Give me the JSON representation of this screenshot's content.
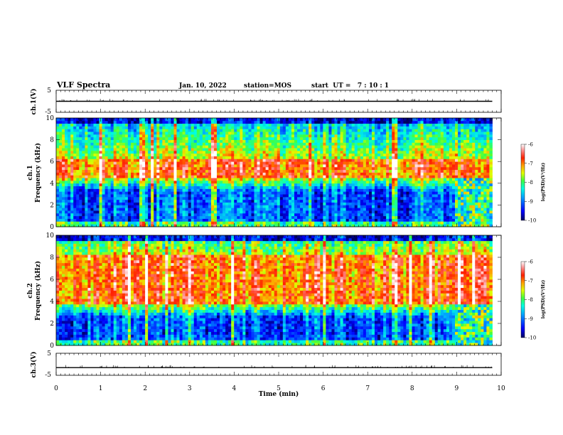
{
  "header": {
    "title": "VLF Spectra",
    "date": "Jan. 10, 2022",
    "station": "station=MOS",
    "start_time": "start  UT =   7 : 10 : 1"
  },
  "chart_data": [
    {
      "type": "line",
      "name": "waveform-ch1",
      "ylabel": "ch.1(V)",
      "ylim": [
        -5,
        5
      ],
      "y_ticks": [
        "5",
        "-5"
      ],
      "xlim": [
        0,
        10
      ],
      "baseline_value": 0
    },
    {
      "type": "heatmap",
      "name": "spectrogram-ch1",
      "ylabel": "ch.1",
      "ylabel2": "Frequency (kHz)",
      "ylim": [
        0,
        10
      ],
      "y_ticks": [
        "0",
        "2",
        "4",
        "6",
        "8",
        "10"
      ],
      "xlim": [
        0,
        10
      ],
      "data_end_min": 9.8,
      "colorbar": {
        "label": "log(PSD)(V²/Hz)",
        "range": [
          -10,
          -6
        ],
        "ticks": [
          "-6",
          "-7",
          "-8",
          "-9",
          "-10"
        ]
      },
      "band_low_khz": 4.5,
      "band_high_khz": 6.2
    },
    {
      "type": "heatmap",
      "name": "spectrogram-ch2",
      "ylabel": "ch.2",
      "ylabel2": "Frequency (kHz)",
      "ylim": [
        0,
        10
      ],
      "y_ticks": [
        "0",
        "2",
        "4",
        "6",
        "8",
        "10"
      ],
      "xlim": [
        0,
        10
      ],
      "data_end_min": 9.8,
      "colorbar": {
        "label": "log(PSD)(V²/Hz)",
        "range": [
          -10,
          -6
        ],
        "ticks": [
          "-6",
          "-7",
          "-8",
          "-9",
          "-10"
        ]
      },
      "band_low_khz": 3.8,
      "band_high_khz": 8.2
    },
    {
      "type": "line",
      "name": "waveform-ch3",
      "ylabel": "ch.3(V)",
      "ylim": [
        -5,
        5
      ],
      "y_ticks": [
        "5",
        "-5"
      ],
      "xlim": [
        0,
        10
      ],
      "baseline_value": -1.5
    }
  ],
  "x_axis": {
    "label": "Time (min)",
    "ticks": [
      "0",
      "1",
      "2",
      "3",
      "4",
      "5",
      "6",
      "7",
      "8",
      "9",
      "10"
    ]
  },
  "colors": {
    "colormap": [
      "#000060",
      "#0000ff",
      "#00a0ff",
      "#00ffe0",
      "#40ff40",
      "#e0ff00",
      "#ffa000",
      "#ff2000",
      "#ff9090",
      "#ffffff"
    ]
  }
}
